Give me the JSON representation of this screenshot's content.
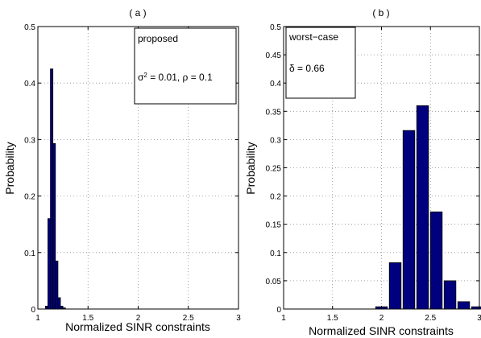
{
  "colors": {
    "bar_fill": "#00007f",
    "bar_edge": "#000000"
  },
  "chart_data": [
    {
      "type": "bar",
      "title": "( a )",
      "xlabel": "Normalized SINR constraints",
      "ylabel": "Probability",
      "xlim": [
        1,
        3
      ],
      "ylim": [
        0,
        0.5
      ],
      "xticks": [
        1,
        1.5,
        2,
        2.5,
        3
      ],
      "xtick_labels": [
        "1",
        "1.5",
        "2",
        "2.5",
        "3"
      ],
      "yticks": [
        0,
        0.1,
        0.2,
        0.3,
        0.4,
        0.5
      ],
      "ytick_labels": [
        "0",
        "0.1",
        "0.2",
        "0.3",
        "0.4",
        "0.5"
      ],
      "grid": true,
      "bin_width": 0.025,
      "x": [
        1.0875,
        1.1125,
        1.1375,
        1.1625,
        1.1875,
        1.2125,
        1.2375,
        1.2625
      ],
      "values": [
        0.005,
        0.16,
        0.425,
        0.293,
        0.085,
        0.02,
        0.005,
        0.002
      ],
      "legend": {
        "line1": "proposed",
        "line2": "σ2 = 0.01, ρ = 0.1",
        "placement": "top-right"
      }
    },
    {
      "type": "bar",
      "title": "( b )",
      "xlabel": "Normalized SINR constraints",
      "ylabel": "Probability",
      "xlim": [
        1,
        3
      ],
      "ylim": [
        0,
        0.5
      ],
      "xticks": [
        1,
        1.5,
        2,
        2.5,
        3
      ],
      "xtick_labels": [
        "1",
        "1.5",
        "2",
        "2.5",
        "3"
      ],
      "yticks": [
        0,
        0.05,
        0.1,
        0.15,
        0.2,
        0.25,
        0.3,
        0.35,
        0.4,
        0.45,
        0.5
      ],
      "ytick_labels": [
        "0",
        "0.05",
        "0.1",
        "0.15",
        "0.2",
        "0.25",
        "0.3",
        "0.35",
        "0.4",
        "0.45",
        "0.5"
      ],
      "grid": true,
      "bin_width": 0.12,
      "x": [
        2.0,
        2.14,
        2.28,
        2.42,
        2.56,
        2.7,
        2.84,
        2.98
      ],
      "values": [
        0.004,
        0.082,
        0.316,
        0.36,
        0.172,
        0.05,
        0.013,
        0.004
      ],
      "legend": {
        "line1": "worst−case",
        "line2": "δ = 0.66",
        "placement": "top-left"
      }
    }
  ]
}
